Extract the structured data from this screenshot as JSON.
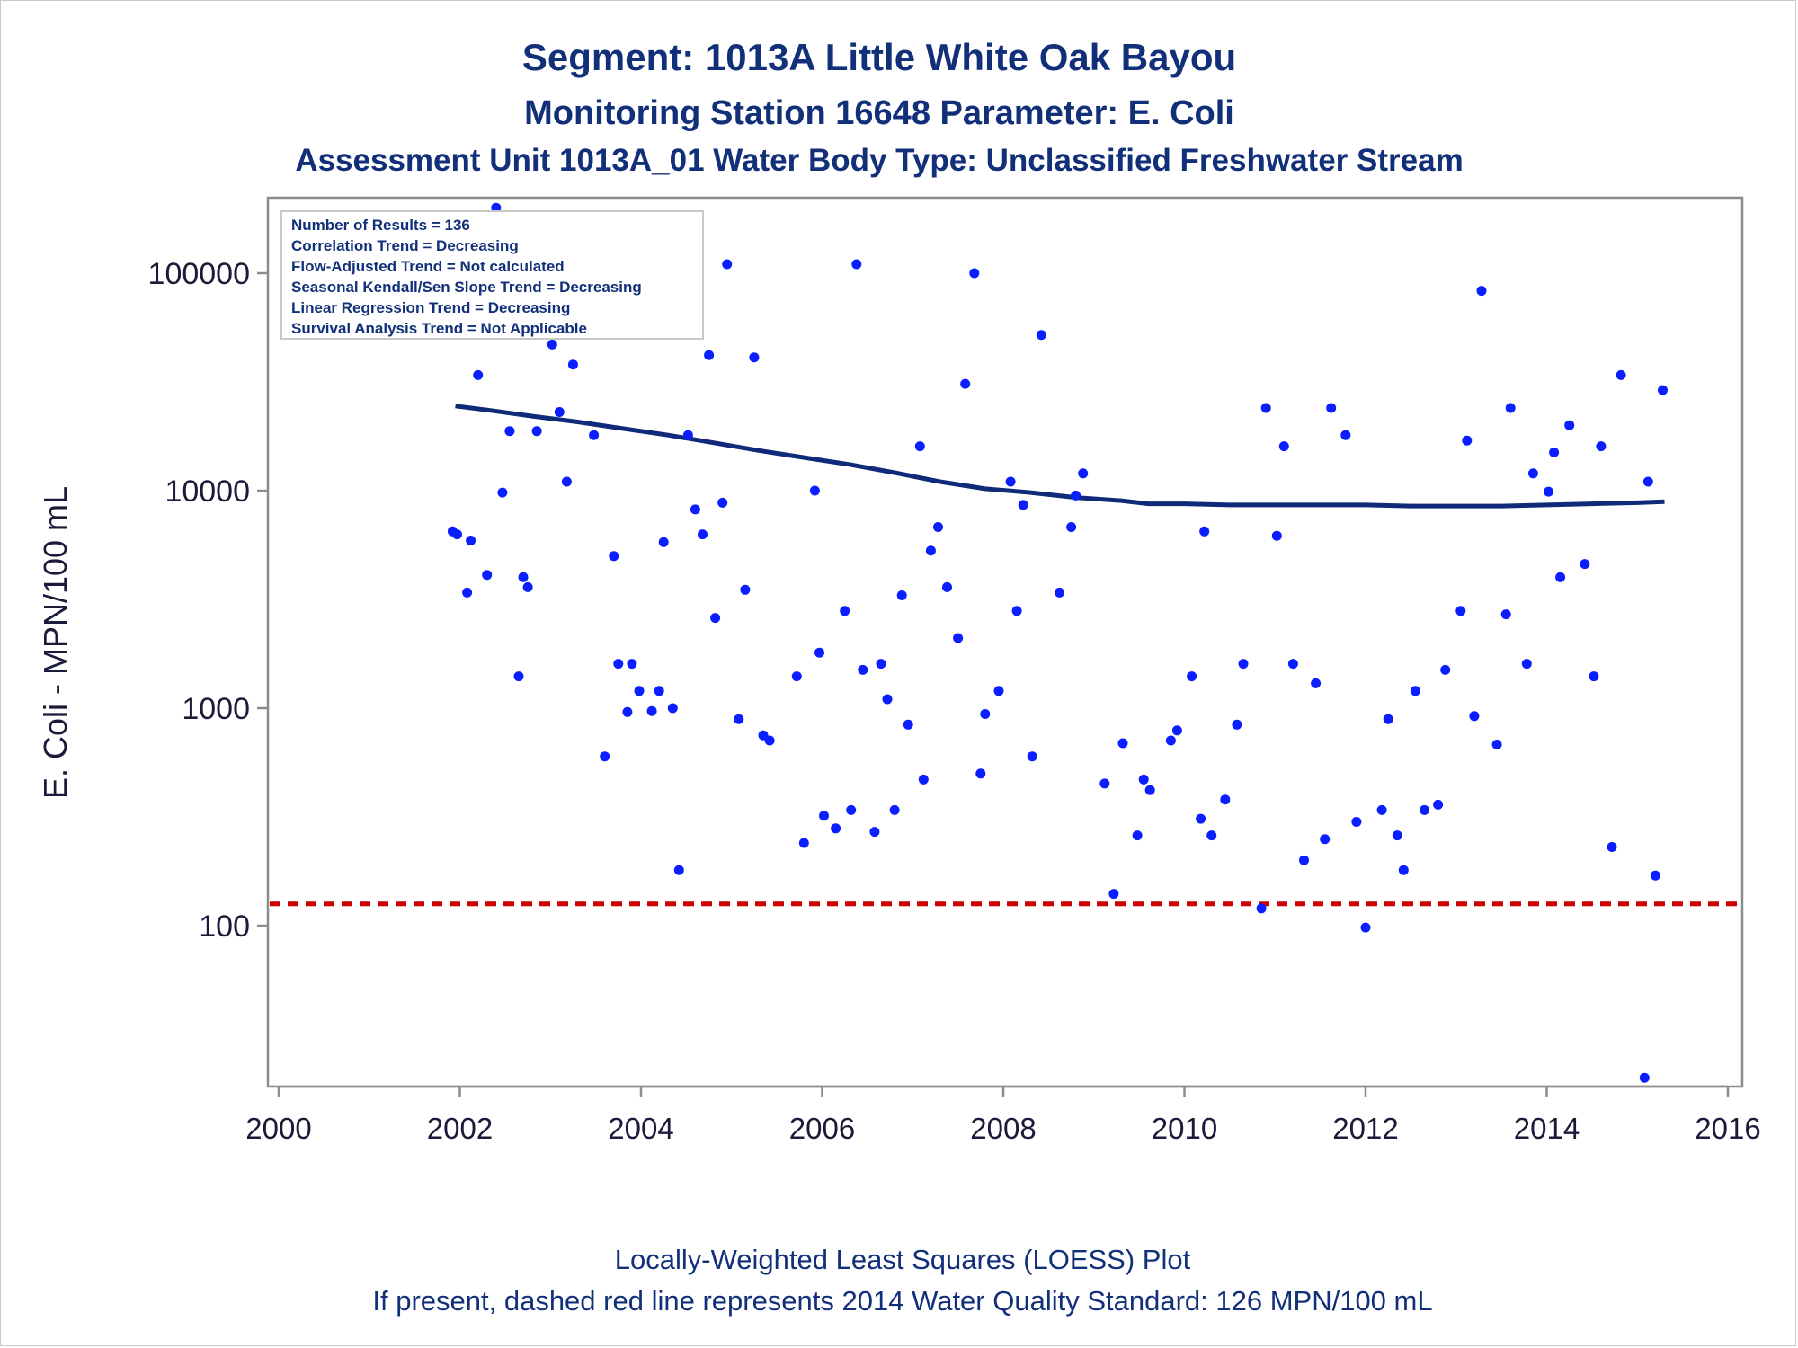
{
  "titles": {
    "line1": "Segment: 1013A  Little White Oak Bayou",
    "line2": "Monitoring Station 16648 Parameter: E. Coli",
    "line3": "Assessment Unit 1013A_01   Water Body Type: Unclassified Freshwater Stream"
  },
  "stats_box": [
    "Number of Results = 136",
    "Correlation Trend = Decreasing",
    "Flow-Adjusted Trend = Not calculated",
    "Seasonal Kendall/Sen Slope Trend = Decreasing",
    "Linear Regression Trend = Decreasing",
    "Survival Analysis Trend = Not Applicable"
  ],
  "footnotes": {
    "line1": "Locally-Weighted Least Squares (LOESS) Plot",
    "line2": "If present, dashed red line represents 2014 Water Quality Standard: 126 MPN/100 mL"
  },
  "colors": {
    "points": "#0a1eff",
    "loess": "#0f2a78",
    "standard": "#cc0000",
    "title": "#12307a",
    "axis": "#8c8c8c"
  },
  "chart_data": {
    "type": "scatter",
    "ylabel": "E. Coli - MPN/100 mL",
    "xlabel": "",
    "y_scale": "log",
    "xlim": [
      2000,
      2016
    ],
    "ylim": [
      18,
      220000
    ],
    "x_ticks": [
      "2000",
      "2002",
      "2004",
      "2006",
      "2008",
      "2010",
      "2012",
      "2014",
      "2016"
    ],
    "y_ticks": [
      "100",
      "1000",
      "10000",
      "100000"
    ],
    "standard_line": 126,
    "points": [
      [
        2001.92,
        6500
      ],
      [
        2001.97,
        6300
      ],
      [
        2002.08,
        3400
      ],
      [
        2002.12,
        5900
      ],
      [
        2002.2,
        34000
      ],
      [
        2002.3,
        4100
      ],
      [
        2002.4,
        200000
      ],
      [
        2002.47,
        9800
      ],
      [
        2002.55,
        18800
      ],
      [
        2002.65,
        1400
      ],
      [
        2002.7,
        4000
      ],
      [
        2002.75,
        3600
      ],
      [
        2002.85,
        18800
      ],
      [
        2003.02,
        47000
      ],
      [
        2003.1,
        23000
      ],
      [
        2003.18,
        11000
      ],
      [
        2003.25,
        38000
      ],
      [
        2003.35,
        76000
      ],
      [
        2003.4,
        110000
      ],
      [
        2003.48,
        18000
      ],
      [
        2003.6,
        600
      ],
      [
        2003.7,
        5000
      ],
      [
        2003.75,
        1600
      ],
      [
        2003.85,
        960
      ],
      [
        2003.9,
        1600
      ],
      [
        2003.98,
        1200
      ],
      [
        2004.12,
        970
      ],
      [
        2004.2,
        1200
      ],
      [
        2004.25,
        5800
      ],
      [
        2004.35,
        1000
      ],
      [
        2004.42,
        180
      ],
      [
        2004.52,
        18000
      ],
      [
        2004.6,
        8200
      ],
      [
        2004.68,
        6300
      ],
      [
        2004.75,
        42000
      ],
      [
        2004.82,
        2600
      ],
      [
        2004.9,
        8800
      ],
      [
        2004.95,
        110000
      ],
      [
        2005.08,
        890
      ],
      [
        2005.15,
        3500
      ],
      [
        2005.25,
        41000
      ],
      [
        2005.35,
        750
      ],
      [
        2005.42,
        710
      ],
      [
        2005.72,
        1400
      ],
      [
        2005.8,
        240
      ],
      [
        2005.92,
        10000
      ],
      [
        2005.97,
        1800
      ],
      [
        2006.02,
        320
      ],
      [
        2006.15,
        280
      ],
      [
        2006.25,
        2800
      ],
      [
        2006.32,
        340
      ],
      [
        2006.38,
        110000
      ],
      [
        2006.45,
        1500
      ],
      [
        2006.58,
        270
      ],
      [
        2006.65,
        1600
      ],
      [
        2006.72,
        1100
      ],
      [
        2006.8,
        340
      ],
      [
        2006.88,
        3300
      ],
      [
        2006.95,
        840
      ],
      [
        2007.08,
        16000
      ],
      [
        2007.12,
        470
      ],
      [
        2007.2,
        5300
      ],
      [
        2007.28,
        6800
      ],
      [
        2007.38,
        3600
      ],
      [
        2007.5,
        2100
      ],
      [
        2007.58,
        31000
      ],
      [
        2007.68,
        100000
      ],
      [
        2007.75,
        500
      ],
      [
        2007.8,
        940
      ],
      [
        2007.95,
        1200
      ],
      [
        2008.08,
        11000
      ],
      [
        2008.15,
        2800
      ],
      [
        2008.22,
        8600
      ],
      [
        2008.32,
        600
      ],
      [
        2008.42,
        52000
      ],
      [
        2008.62,
        3400
      ],
      [
        2008.75,
        6800
      ],
      [
        2008.8,
        9500
      ],
      [
        2008.88,
        12000
      ],
      [
        2009.12,
        450
      ],
      [
        2009.22,
        140
      ],
      [
        2009.32,
        690
      ],
      [
        2009.48,
        260
      ],
      [
        2009.55,
        470
      ],
      [
        2009.62,
        420
      ],
      [
        2009.85,
        710
      ],
      [
        2009.92,
        790
      ],
      [
        2010.08,
        1400
      ],
      [
        2010.18,
        310
      ],
      [
        2010.22,
        6500
      ],
      [
        2010.3,
        260
      ],
      [
        2010.45,
        380
      ],
      [
        2010.58,
        840
      ],
      [
        2010.65,
        1600
      ],
      [
        2010.85,
        120
      ],
      [
        2010.9,
        24000
      ],
      [
        2011.02,
        6200
      ],
      [
        2011.1,
        16000
      ],
      [
        2011.2,
        1600
      ],
      [
        2011.32,
        200
      ],
      [
        2011.45,
        1300
      ],
      [
        2011.55,
        250
      ],
      [
        2011.62,
        24000
      ],
      [
        2011.78,
        18000
      ],
      [
        2011.9,
        300
      ],
      [
        2012.0,
        98
      ],
      [
        2012.18,
        340
      ],
      [
        2012.25,
        890
      ],
      [
        2012.35,
        260
      ],
      [
        2012.42,
        180
      ],
      [
        2012.55,
        1200
      ],
      [
        2012.65,
        340
      ],
      [
        2012.8,
        360
      ],
      [
        2012.88,
        1500
      ],
      [
        2013.05,
        2800
      ],
      [
        2013.12,
        17000
      ],
      [
        2013.2,
        920
      ],
      [
        2013.28,
        83000
      ],
      [
        2013.45,
        680
      ],
      [
        2013.55,
        2700
      ],
      [
        2013.6,
        24000
      ],
      [
        2013.78,
        1600
      ],
      [
        2013.85,
        12000
      ],
      [
        2014.02,
        9900
      ],
      [
        2014.08,
        15000
      ],
      [
        2014.15,
        4000
      ],
      [
        2014.25,
        20000
      ],
      [
        2014.42,
        4600
      ],
      [
        2014.52,
        1400
      ],
      [
        2014.6,
        16000
      ],
      [
        2014.72,
        230
      ],
      [
        2014.82,
        34000
      ],
      [
        2015.08,
        20
      ],
      [
        2015.12,
        11000
      ],
      [
        2015.2,
        170
      ],
      [
        2015.28,
        29000
      ]
    ],
    "loess": [
      [
        2001.95,
        24500
      ],
      [
        2002.3,
        23500
      ],
      [
        2002.8,
        22000
      ],
      [
        2003.3,
        20700
      ],
      [
        2003.8,
        19300
      ],
      [
        2004.3,
        18000
      ],
      [
        2004.8,
        16600
      ],
      [
        2005.3,
        15300
      ],
      [
        2005.8,
        14200
      ],
      [
        2006.3,
        13200
      ],
      [
        2006.8,
        12100
      ],
      [
        2007.3,
        11000
      ],
      [
        2007.8,
        10200
      ],
      [
        2008.3,
        9800
      ],
      [
        2008.8,
        9300
      ],
      [
        2009.3,
        9000
      ],
      [
        2009.6,
        8700
      ],
      [
        2010.0,
        8700
      ],
      [
        2010.5,
        8600
      ],
      [
        2011.0,
        8600
      ],
      [
        2011.5,
        8600
      ],
      [
        2012.0,
        8600
      ],
      [
        2012.5,
        8500
      ],
      [
        2013.0,
        8500
      ],
      [
        2013.5,
        8500
      ],
      [
        2014.0,
        8600
      ],
      [
        2014.5,
        8700
      ],
      [
        2015.0,
        8800
      ],
      [
        2015.3,
        8900
      ]
    ]
  }
}
